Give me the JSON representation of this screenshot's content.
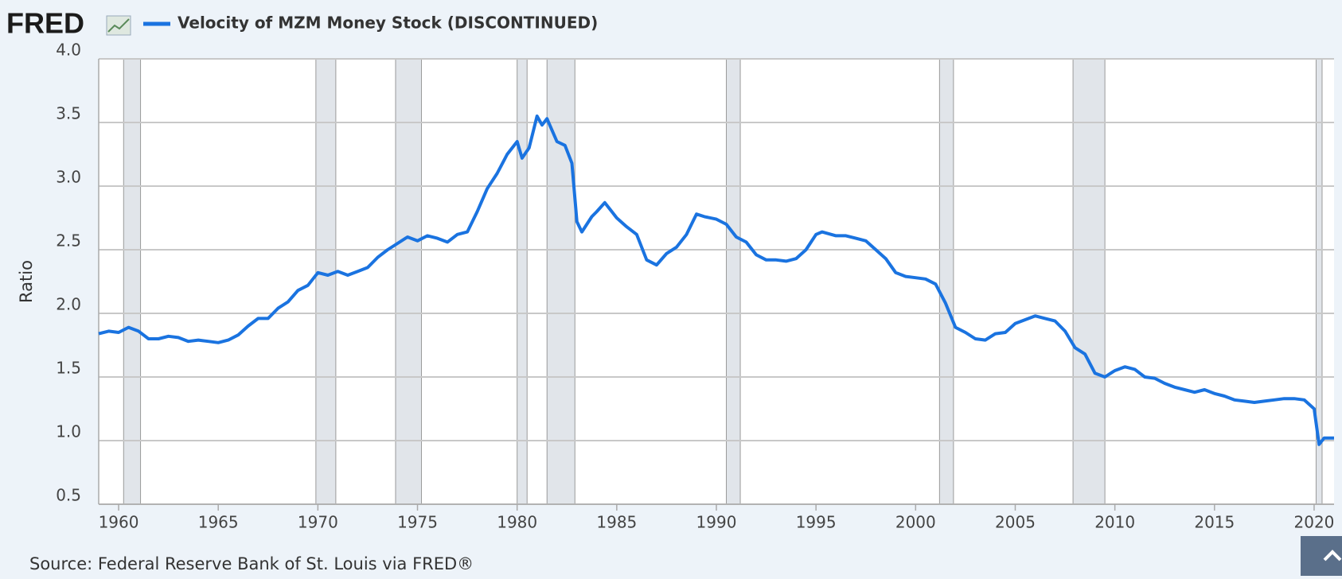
{
  "chart_data": {
    "type": "line",
    "logo": "FRED",
    "title": "Velocity of MZM Money Stock (DISCONTINUED)",
    "ylabel": "Ratio",
    "source": "Source: Federal Reserve Bank of St. Louis via FRED®",
    "xlim": [
      1959,
      2021
    ],
    "ylim": [
      0.5,
      4.0
    ],
    "xticks": [
      1960,
      1965,
      1970,
      1975,
      1980,
      1985,
      1990,
      1995,
      2000,
      2005,
      2010,
      2015,
      2020
    ],
    "yticks": [
      0.5,
      {
        "value": 1,
        "label": "1.0"
      },
      1.5,
      {
        "value": 2,
        "label": "2.0"
      },
      2.5,
      {
        "value": 3,
        "label": "3.0"
      },
      3.5,
      {
        "value": 4,
        "label": "4.0"
      }
    ],
    "grid": true,
    "recessions": [
      [
        1960.25,
        1961.1
      ],
      [
        1969.9,
        1970.9
      ],
      [
        1973.9,
        1975.2
      ],
      [
        1980.0,
        1980.5
      ],
      [
        1981.5,
        1982.9
      ],
      [
        1990.5,
        1991.2
      ],
      [
        2001.2,
        2001.9
      ],
      [
        2007.9,
        2009.5
      ],
      [
        2020.1,
        2020.4
      ]
    ],
    "series": [
      {
        "name": "Velocity of MZM Money Stock (DISCONTINUED)",
        "color": "#1a73e0",
        "x": [
          1959,
          1959.5,
          1960,
          1960.5,
          1961,
          1961.5,
          1962,
          1962.5,
          1963,
          1963.5,
          1964,
          1964.5,
          1965,
          1965.5,
          1966,
          1966.5,
          1967,
          1967.5,
          1968,
          1968.5,
          1969,
          1969.5,
          1970,
          1970.5,
          1971,
          1971.5,
          1972,
          1972.5,
          1973,
          1973.5,
          1974,
          1974.5,
          1975,
          1975.5,
          1976,
          1976.5,
          1977,
          1977.5,
          1978,
          1978.5,
          1979,
          1979.5,
          1980,
          1980.25,
          1980.6,
          1981,
          1981.25,
          1981.5,
          1982,
          1982.4,
          1982.75,
          1983,
          1983.25,
          1983.75,
          1984,
          1984.4,
          1984.75,
          1985,
          1985.5,
          1986,
          1986.5,
          1987,
          1987.5,
          1988,
          1988.5,
          1989,
          1989.4,
          1990,
          1990.5,
          1991,
          1991.5,
          1992,
          1992.5,
          1993,
          1993.5,
          1994,
          1994.5,
          1995,
          1995.3,
          1996,
          1996.5,
          1997,
          1997.5,
          1998,
          1998.5,
          1999,
          1999.5,
          2000,
          2000.5,
          2001,
          2001.5,
          2002,
          2002.5,
          2003,
          2003.5,
          2004,
          2004.5,
          2005,
          2005.5,
          2006,
          2006.5,
          2007,
          2007.5,
          2008,
          2008.5,
          2009,
          2009.5,
          2010,
          2010.5,
          2011,
          2011.5,
          2012,
          2012.5,
          2013,
          2013.5,
          2014,
          2014.5,
          2015,
          2015.5,
          2016,
          2016.5,
          2017,
          2017.5,
          2018,
          2018.5,
          2019,
          2019.5,
          2020,
          2020.25,
          2020.5,
          2021
        ],
        "values": [
          1.84,
          1.86,
          1.85,
          1.89,
          1.86,
          1.8,
          1.8,
          1.82,
          1.81,
          1.78,
          1.79,
          1.78,
          1.77,
          1.79,
          1.83,
          1.9,
          1.96,
          1.96,
          2.04,
          2.09,
          2.18,
          2.22,
          2.32,
          2.3,
          2.33,
          2.3,
          2.33,
          2.36,
          2.44,
          2.5,
          2.55,
          2.6,
          2.57,
          2.61,
          2.59,
          2.56,
          2.62,
          2.64,
          2.8,
          2.98,
          3.1,
          3.25,
          3.35,
          3.22,
          3.3,
          3.55,
          3.48,
          3.53,
          3.35,
          3.32,
          3.18,
          2.72,
          2.64,
          2.76,
          2.8,
          2.87,
          2.8,
          2.75,
          2.68,
          2.62,
          2.42,
          2.38,
          2.47,
          2.52,
          2.62,
          2.78,
          2.76,
          2.74,
          2.7,
          2.6,
          2.56,
          2.46,
          2.42,
          2.42,
          2.41,
          2.43,
          2.5,
          2.62,
          2.64,
          2.61,
          2.61,
          2.59,
          2.57,
          2.5,
          2.43,
          2.32,
          2.29,
          2.28,
          2.27,
          2.23,
          2.08,
          1.89,
          1.85,
          1.8,
          1.79,
          1.84,
          1.85,
          1.92,
          1.95,
          1.98,
          1.96,
          1.94,
          1.86,
          1.73,
          1.68,
          1.53,
          1.5,
          1.55,
          1.58,
          1.56,
          1.5,
          1.49,
          1.45,
          1.42,
          1.4,
          1.38,
          1.4,
          1.37,
          1.35,
          1.32,
          1.31,
          1.3,
          1.31,
          1.32,
          1.33,
          1.33,
          1.32,
          1.25,
          0.97,
          1.02,
          1.02
        ]
      }
    ]
  }
}
